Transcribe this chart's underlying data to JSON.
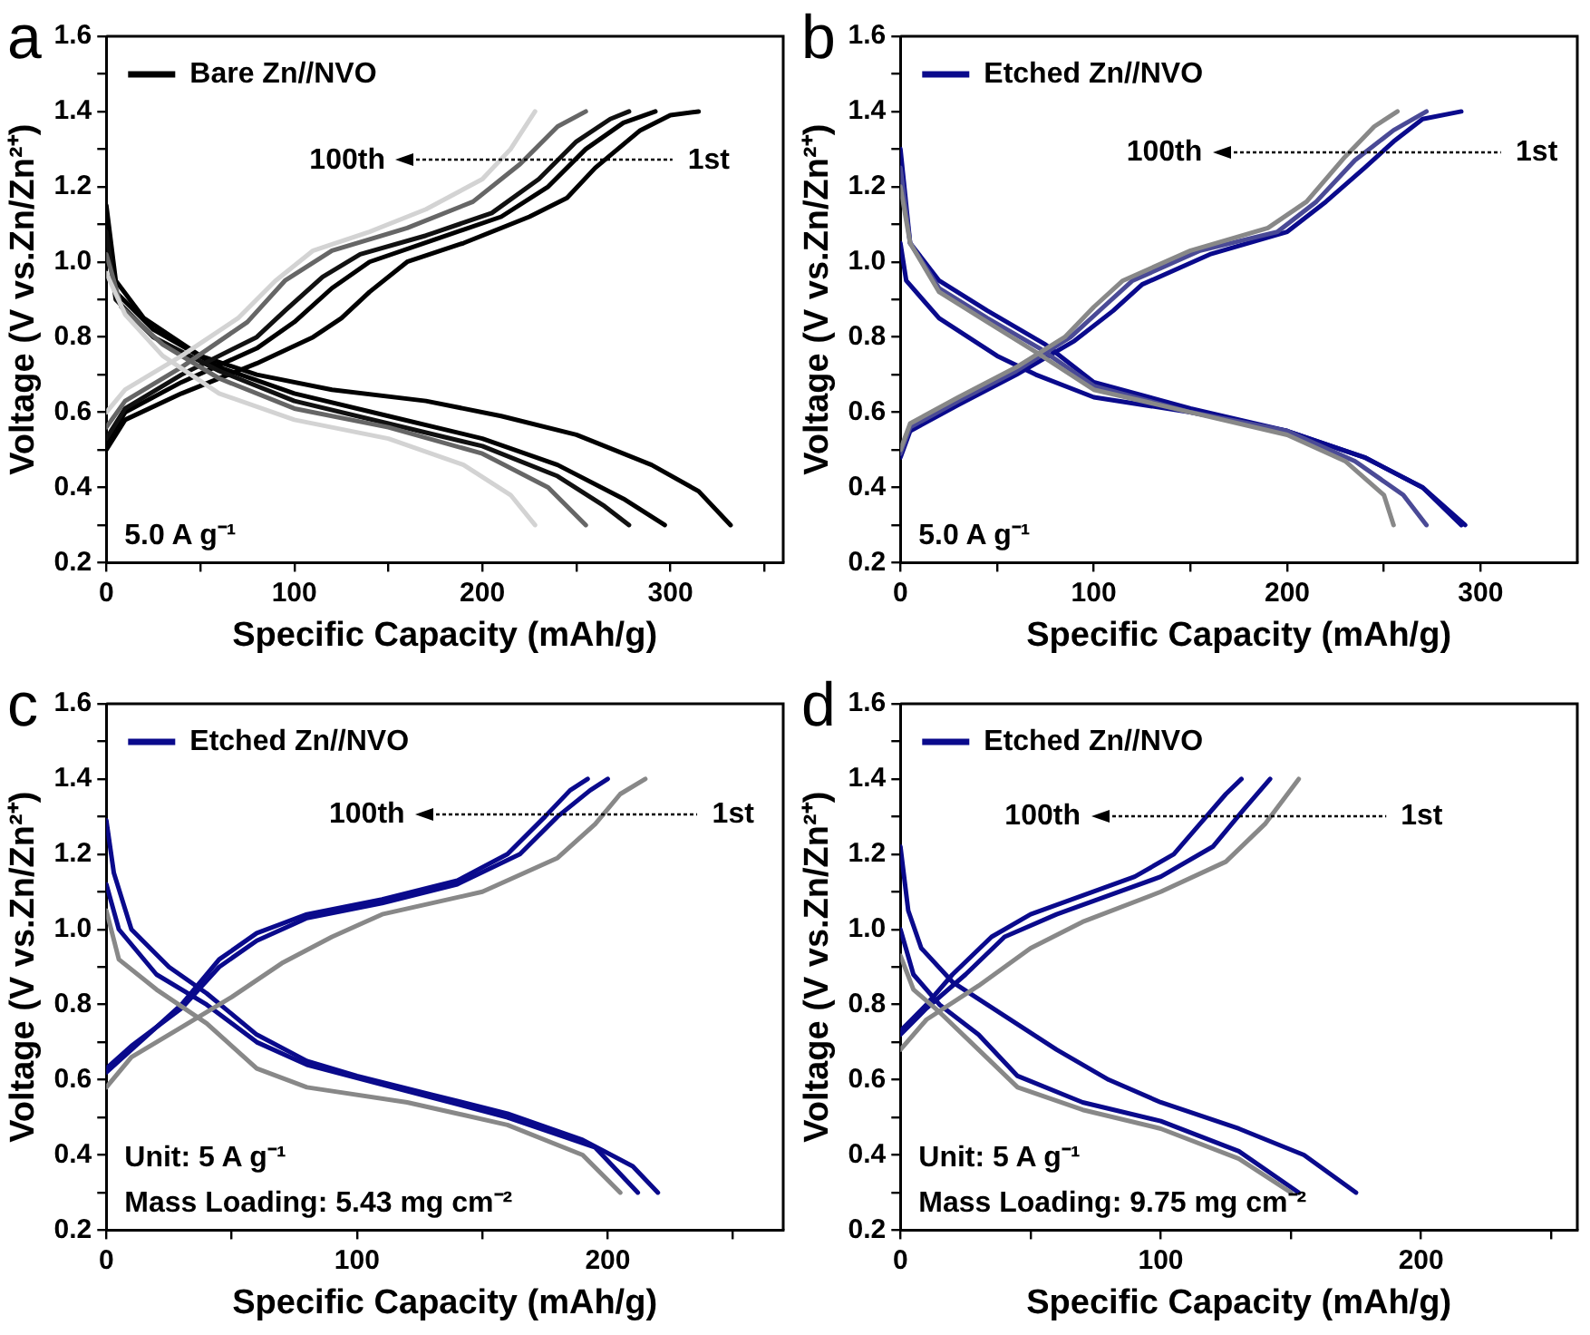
{
  "chart_data": [
    {
      "type": "line",
      "title": "a",
      "xlabel": "Specific Capacity (mAh/g)",
      "ylabel": "Voltage (V vs.Zn/Zn²⁺)",
      "legend": "top left",
      "grid": false,
      "xlim": [
        0,
        360
      ],
      "xticks": [
        0,
        {
          "value": 50,
          "label": null
        },
        100,
        {
          "value": 150,
          "label": null
        },
        200,
        {
          "value": 250,
          "label": null
        },
        300,
        {
          "value": 350,
          "label": null
        }
      ],
      "ylim": [
        0.2,
        1.6
      ],
      "yticks": [
        {
          "value": 0.2,
          "label": "0.2"
        },
        {
          "value": 0.3,
          "label": null
        },
        {
          "value": 0.4,
          "label": "0.4"
        },
        {
          "value": 0.5,
          "label": null
        },
        {
          "value": 0.6,
          "label": "0.6"
        },
        {
          "value": 0.7,
          "label": null
        },
        {
          "value": 0.8,
          "label": "0.8"
        },
        {
          "value": 0.9,
          "label": null
        },
        {
          "value": 1.0,
          "label": "1.0"
        },
        {
          "value": 1.1,
          "label": null
        },
        {
          "value": 1.2,
          "label": "1.2"
        },
        {
          "value": 1.3,
          "label": null
        },
        {
          "value": 1.4,
          "label": "1.4"
        },
        {
          "value": 1.5,
          "label": null
        },
        {
          "value": 1.6,
          "label": "1.6"
        }
      ],
      "annotations": [
        "100th",
        "1st",
        "5.0 A g⁻¹"
      ],
      "series": [
        {
          "color": "#d3d3d3",
          "x": [
            0,
            10,
            40,
            70,
            90,
            110,
            140,
            170,
            200,
            215,
            228
          ],
          "values": [
            0.6,
            0.66,
            0.75,
            0.85,
            0.95,
            1.03,
            1.08,
            1.14,
            1.22,
            1.3,
            1.4
          ]
        },
        {
          "color": "#d3d3d3",
          "x": [
            0,
            10,
            30,
            60,
            100,
            150,
            190,
            215,
            228
          ],
          "values": [
            0.97,
            0.86,
            0.75,
            0.65,
            0.58,
            0.53,
            0.46,
            0.38,
            0.3
          ]
        },
        {
          "color": "#666666",
          "x": [
            0,
            10,
            40,
            75,
            95,
            120,
            160,
            195,
            220,
            240,
            255
          ],
          "values": [
            0.56,
            0.63,
            0.72,
            0.84,
            0.95,
            1.03,
            1.09,
            1.16,
            1.26,
            1.36,
            1.4
          ]
        },
        {
          "color": "#666666",
          "x": [
            0,
            8,
            30,
            60,
            100,
            150,
            200,
            235,
            255
          ],
          "values": [
            1.02,
            0.88,
            0.78,
            0.69,
            0.61,
            0.56,
            0.49,
            0.4,
            0.3
          ]
        },
        {
          "color": "#111111",
          "x": [
            0,
            10,
            40,
            80,
            95,
            115,
            135,
            170,
            205,
            230,
            250,
            268,
            278
          ],
          "values": [
            0.53,
            0.61,
            0.7,
            0.8,
            0.87,
            0.96,
            1.02,
            1.07,
            1.13,
            1.22,
            1.32,
            1.38,
            1.4
          ]
        },
        {
          "color": "#111111",
          "x": [
            0,
            5,
            25,
            60,
            100,
            150,
            200,
            240,
            265,
            278
          ],
          "values": [
            1.08,
            0.9,
            0.8,
            0.71,
            0.63,
            0.57,
            0.51,
            0.43,
            0.35,
            0.3
          ]
        },
        {
          "color": "#000000",
          "x": [
            0,
            10,
            40,
            80,
            100,
            120,
            140,
            175,
            210,
            235,
            255,
            275,
            292
          ],
          "values": [
            0.52,
            0.6,
            0.68,
            0.77,
            0.84,
            0.93,
            1.0,
            1.06,
            1.12,
            1.2,
            1.3,
            1.37,
            1.4
          ]
        },
        {
          "color": "#000000",
          "x": [
            0,
            5,
            25,
            60,
            100,
            150,
            200,
            240,
            275,
            297
          ],
          "values": [
            1.1,
            0.92,
            0.82,
            0.72,
            0.65,
            0.59,
            0.53,
            0.46,
            0.37,
            0.3
          ]
        },
        {
          "color": "#000000",
          "x": [
            0,
            10,
            40,
            80,
            110,
            125,
            140,
            160,
            190,
            225,
            245,
            260,
            284,
            300,
            315
          ],
          "values": [
            0.5,
            0.58,
            0.65,
            0.73,
            0.8,
            0.85,
            0.92,
            1.0,
            1.05,
            1.12,
            1.17,
            1.25,
            1.35,
            1.39,
            1.4
          ]
        },
        {
          "name": "Bare Zn//NVO",
          "color": "#000000",
          "x": [
            0,
            5,
            20,
            50,
            80,
            120,
            170,
            210,
            250,
            290,
            315,
            332
          ],
          "values": [
            1.15,
            0.95,
            0.85,
            0.75,
            0.7,
            0.66,
            0.63,
            0.59,
            0.54,
            0.46,
            0.39,
            0.3
          ]
        }
      ]
    },
    {
      "type": "line",
      "title": "b",
      "xlabel": "Specific Capacity (mAh/g)",
      "ylabel": "Voltage (V vs.Zn/Zn²⁺)",
      "legend": "top left",
      "grid": false,
      "xlim": [
        0,
        350
      ],
      "xticks": [
        0,
        {
          "value": 50,
          "label": null
        },
        100,
        {
          "value": 150,
          "label": null
        },
        200,
        {
          "value": 250,
          "label": null
        },
        300
      ],
      "ylim": [
        0.2,
        1.6
      ],
      "yticks": [
        {
          "value": 0.2,
          "label": "0.2"
        },
        {
          "value": 0.3,
          "label": null
        },
        {
          "value": 0.4,
          "label": "0.4"
        },
        {
          "value": 0.5,
          "label": null
        },
        {
          "value": 0.6,
          "label": "0.6"
        },
        {
          "value": 0.7,
          "label": null
        },
        {
          "value": 0.8,
          "label": "0.8"
        },
        {
          "value": 0.9,
          "label": null
        },
        {
          "value": 1.0,
          "label": "1.0"
        },
        {
          "value": 1.1,
          "label": null
        },
        {
          "value": 1.2,
          "label": "1.2"
        },
        {
          "value": 1.3,
          "label": null
        },
        {
          "value": 1.4,
          "label": "1.4"
        },
        {
          "value": 1.5,
          "label": null
        },
        {
          "value": 1.6,
          "label": "1.6"
        }
      ],
      "annotations": [
        "100th",
        "1st",
        "5.0 A g⁻¹"
      ],
      "series": [
        {
          "color": "#888888",
          "x": [
            0,
            5,
            30,
            60,
            85,
            100,
            115,
            150,
            190,
            210,
            230,
            245,
            257
          ],
          "values": [
            0.5,
            0.57,
            0.64,
            0.72,
            0.8,
            0.88,
            0.95,
            1.03,
            1.09,
            1.16,
            1.28,
            1.36,
            1.4
          ]
        },
        {
          "color": "#888888",
          "x": [
            0,
            5,
            20,
            45,
            70,
            100,
            150,
            200,
            230,
            250,
            255
          ],
          "values": [
            1.2,
            1.05,
            0.92,
            0.84,
            0.76,
            0.66,
            0.6,
            0.54,
            0.47,
            0.38,
            0.3
          ]
        },
        {
          "color": "#4a4a96",
          "x": [
            0,
            5,
            30,
            60,
            88,
            105,
            120,
            155,
            195,
            215,
            235,
            255,
            272
          ],
          "values": [
            0.49,
            0.56,
            0.63,
            0.71,
            0.8,
            0.88,
            0.95,
            1.03,
            1.08,
            1.16,
            1.27,
            1.35,
            1.4
          ]
        },
        {
          "color": "#4a4a96",
          "x": [
            0,
            5,
            20,
            45,
            72,
            100,
            150,
            200,
            235,
            260,
            272
          ],
          "values": [
            1.25,
            1.05,
            0.93,
            0.85,
            0.77,
            0.67,
            0.6,
            0.55,
            0.47,
            0.38,
            0.3
          ]
        },
        {
          "color": "#0a0a8c",
          "x": [
            0,
            5,
            20,
            45,
            75,
            100,
            150,
            200,
            240,
            270,
            290
          ],
          "values": [
            1.3,
            1.05,
            0.95,
            0.87,
            0.78,
            0.68,
            0.61,
            0.55,
            0.48,
            0.4,
            0.3
          ]
        },
        {
          "color": "#0a0a8c",
          "x": [
            0,
            5,
            30,
            60,
            90,
            110,
            125,
            160,
            200,
            220,
            240,
            255,
            270,
            290
          ],
          "values": [
            0.48,
            0.55,
            0.62,
            0.7,
            0.79,
            0.87,
            0.94,
            1.02,
            1.08,
            1.16,
            1.25,
            1.32,
            1.38,
            1.4
          ]
        },
        {
          "name": "Etched Zn//NVO",
          "color": "#0a0a8c",
          "x": [
            0,
            3,
            20,
            50,
            70,
            100,
            150,
            200,
            240,
            270,
            292
          ],
          "values": [
            1.05,
            0.95,
            0.85,
            0.75,
            0.7,
            0.64,
            0.6,
            0.55,
            0.48,
            0.4,
            0.3
          ]
        }
      ]
    },
    {
      "type": "line",
      "title": "c",
      "xlabel": "Specific Capacity (mAh/g)",
      "ylabel": "Voltage (V vs.Zn/Zn²⁺)",
      "legend": "top left",
      "grid": false,
      "xlim": [
        0,
        270
      ],
      "xticks": [
        0,
        {
          "value": 50,
          "label": null
        },
        100,
        {
          "value": 150,
          "label": null
        },
        200,
        {
          "value": 250,
          "label": null
        }
      ],
      "ylim": [
        0.2,
        1.6
      ],
      "yticks": [
        {
          "value": 0.2,
          "label": "0.2"
        },
        {
          "value": 0.3,
          "label": null
        },
        {
          "value": 0.4,
          "label": "0.4"
        },
        {
          "value": 0.5,
          "label": null
        },
        {
          "value": 0.6,
          "label": "0.6"
        },
        {
          "value": 0.7,
          "label": null
        },
        {
          "value": 0.8,
          "label": "0.8"
        },
        {
          "value": 0.9,
          "label": null
        },
        {
          "value": 1.0,
          "label": "1.0"
        },
        {
          "value": 1.1,
          "label": null
        },
        {
          "value": 1.2,
          "label": "1.2"
        },
        {
          "value": 1.3,
          "label": null
        },
        {
          "value": 1.4,
          "label": "1.4"
        },
        {
          "value": 1.5,
          "label": null
        },
        {
          "value": 1.6,
          "label": "1.6"
        }
      ],
      "annotations": [
        "100th",
        "1st",
        "Unit: 5 A g⁻¹",
        "Mass Loading: 5.43 mg cm⁻²"
      ],
      "series": [
        {
          "color": "#888888",
          "x": [
            0,
            10,
            30,
            50,
            70,
            90,
            110,
            150,
            180,
            195,
            205,
            215
          ],
          "values": [
            0.58,
            0.66,
            0.74,
            0.82,
            0.91,
            0.98,
            1.04,
            1.1,
            1.19,
            1.28,
            1.36,
            1.4
          ]
        },
        {
          "color": "#888888",
          "x": [
            0,
            5,
            20,
            40,
            60,
            80,
            120,
            160,
            190,
            205
          ],
          "values": [
            1.05,
            0.92,
            0.84,
            0.75,
            0.63,
            0.58,
            0.54,
            0.48,
            0.4,
            0.3
          ]
        },
        {
          "color": "#0a0a8c",
          "x": [
            0,
            10,
            30,
            45,
            60,
            80,
            110,
            140,
            165,
            180,
            193,
            200
          ],
          "values": [
            0.63,
            0.69,
            0.79,
            0.9,
            0.97,
            1.03,
            1.07,
            1.12,
            1.2,
            1.3,
            1.37,
            1.4
          ]
        },
        {
          "color": "#0a0a8c",
          "x": [
            0,
            5,
            20,
            40,
            60,
            80,
            120,
            160,
            195,
            212
          ],
          "values": [
            1.12,
            1.0,
            0.88,
            0.8,
            0.7,
            0.64,
            0.57,
            0.5,
            0.42,
            0.3
          ]
        },
        {
          "color": "#0a0a8c",
          "x": [
            0,
            10,
            30,
            45,
            60,
            80,
            110,
            140,
            160,
            175,
            185,
            192
          ],
          "values": [
            0.62,
            0.68,
            0.8,
            0.92,
            0.99,
            1.04,
            1.08,
            1.13,
            1.2,
            1.3,
            1.37,
            1.4
          ]
        },
        {
          "name": "Etched Zn//NVO",
          "color": "#0a0a8c",
          "x": [
            0,
            3,
            10,
            25,
            40,
            60,
            80,
            100,
            130,
            160,
            190,
            210,
            220
          ],
          "values": [
            1.29,
            1.15,
            1.0,
            0.9,
            0.83,
            0.72,
            0.65,
            0.61,
            0.56,
            0.51,
            0.44,
            0.37,
            0.3
          ]
        }
      ]
    },
    {
      "type": "line",
      "title": "d",
      "xlabel": "Specific Capacity (mAh/g)",
      "ylabel": "Voltage (V vs.Zn/Zn²⁺)",
      "legend": "top left",
      "grid": false,
      "xlim": [
        0,
        260
      ],
      "xticks": [
        0,
        {
          "value": 50,
          "label": null
        },
        100,
        {
          "value": 150,
          "label": null
        },
        200,
        {
          "value": 250,
          "label": null
        }
      ],
      "ylim": [
        0.2,
        1.6
      ],
      "yticks": [
        {
          "value": 0.2,
          "label": "0.2"
        },
        {
          "value": 0.3,
          "label": null
        },
        {
          "value": 0.4,
          "label": "0.4"
        },
        {
          "value": 0.5,
          "label": null
        },
        {
          "value": 0.6,
          "label": "0.6"
        },
        {
          "value": 0.7,
          "label": null
        },
        {
          "value": 0.8,
          "label": "0.8"
        },
        {
          "value": 0.9,
          "label": null
        },
        {
          "value": 1.0,
          "label": "1.0"
        },
        {
          "value": 1.1,
          "label": null
        },
        {
          "value": 1.2,
          "label": "1.2"
        },
        {
          "value": 1.3,
          "label": null
        },
        {
          "value": 1.4,
          "label": "1.4"
        },
        {
          "value": 1.5,
          "label": null
        },
        {
          "value": 1.6,
          "label": "1.6"
        }
      ],
      "annotations": [
        "100th",
        "1st",
        "Unit: 5 A g⁻¹",
        "Mass Loading: 9.75 mg cm⁻²"
      ],
      "series": [
        {
          "color": "#888888",
          "x": [
            0,
            10,
            30,
            50,
            70,
            100,
            125,
            140,
            153
          ],
          "values": [
            0.68,
            0.76,
            0.85,
            0.95,
            1.02,
            1.1,
            1.18,
            1.28,
            1.4
          ]
        },
        {
          "color": "#888888",
          "x": [
            0,
            5,
            15,
            30,
            45,
            70,
            100,
            130,
            150
          ],
          "values": [
            0.93,
            0.84,
            0.78,
            0.68,
            0.58,
            0.52,
            0.47,
            0.39,
            0.3
          ]
        },
        {
          "color": "#0a0a8c",
          "x": [
            0,
            10,
            25,
            40,
            60,
            80,
            100,
            120,
            132,
            142
          ],
          "values": [
            0.72,
            0.79,
            0.88,
            0.98,
            1.04,
            1.09,
            1.14,
            1.22,
            1.32,
            1.4
          ]
        },
        {
          "color": "#0a0a8c",
          "x": [
            0,
            5,
            15,
            30,
            45,
            70,
            100,
            130,
            153
          ],
          "values": [
            1.0,
            0.88,
            0.8,
            0.72,
            0.61,
            0.54,
            0.49,
            0.41,
            0.3
          ]
        },
        {
          "color": "#0a0a8c",
          "x": [
            0,
            10,
            20,
            35,
            50,
            70,
            90,
            105,
            115,
            125,
            131
          ],
          "values": [
            0.73,
            0.8,
            0.88,
            0.98,
            1.04,
            1.09,
            1.14,
            1.2,
            1.28,
            1.36,
            1.4
          ]
        },
        {
          "name": "Etched Zn//NVO",
          "color": "#0a0a8c",
          "x": [
            0,
            3,
            8,
            20,
            40,
            60,
            80,
            100,
            130,
            155,
            175
          ],
          "values": [
            1.22,
            1.05,
            0.95,
            0.86,
            0.77,
            0.68,
            0.6,
            0.54,
            0.47,
            0.4,
            0.3
          ]
        }
      ]
    }
  ]
}
